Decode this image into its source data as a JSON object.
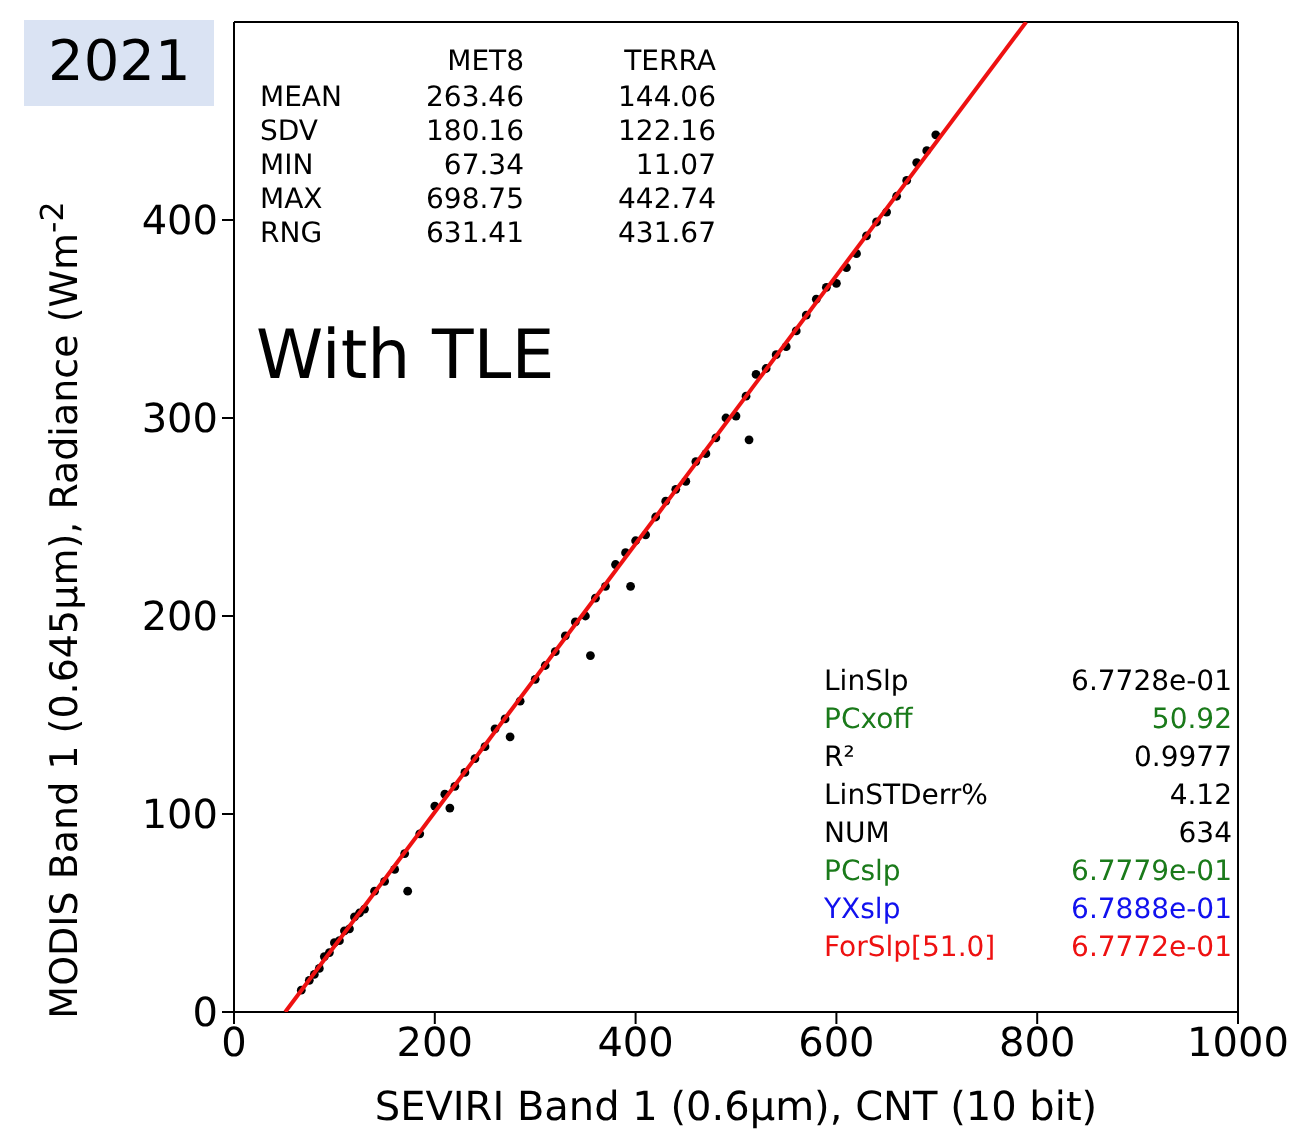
{
  "chart_data": {
    "type": "scatter",
    "xlabel": "SEVIRI Band 1 (0.6μm), CNT (10 bit)",
    "ylabel": "MODIS Band 1 (0.645μm), Radiance (Wm$^{-2}$",
    "xlim": [
      0,
      1000
    ],
    "xticks": [
      0,
      200,
      400,
      600,
      800,
      1000
    ],
    "ylim": [
      0,
      500
    ],
    "yticks": [
      0,
      100,
      200,
      300,
      400
    ],
    "grid": false,
    "marker": "circle",
    "series": [
      {
        "color": "#000000",
        "x": [
          67,
          75,
          80,
          85,
          90,
          95,
          100,
          105,
          110,
          115,
          120,
          125,
          130,
          140,
          150,
          160,
          170,
          173,
          185,
          200,
          210,
          215,
          220,
          230,
          240,
          250,
          260,
          270,
          275,
          285,
          300,
          310,
          320,
          330,
          340,
          350,
          355,
          360,
          370,
          380,
          390,
          395,
          400,
          410,
          420,
          430,
          440,
          450,
          460,
          470,
          480,
          490,
          500,
          510,
          513,
          520,
          530,
          540,
          550,
          560,
          570,
          580,
          590,
          600,
          610,
          620,
          630,
          640,
          650,
          660,
          670,
          680,
          690,
          699
        ],
        "values": [
          11,
          16,
          19,
          22,
          28,
          30,
          35,
          36,
          41,
          42,
          48,
          50,
          52,
          61,
          66,
          72,
          80,
          61,
          90,
          104,
          110,
          103,
          114,
          121,
          128,
          134,
          143,
          148,
          139,
          157,
          168,
          175,
          182,
          190,
          197,
          200,
          180,
          209,
          215,
          226,
          232,
          215,
          238,
          241,
          250,
          258,
          264,
          268,
          278,
          282,
          290,
          300,
          301,
          311,
          289,
          322,
          325,
          332,
          336,
          344,
          352,
          360,
          366,
          368,
          376,
          383,
          392,
          399,
          404,
          412,
          420,
          429,
          435,
          443
        ]
      },
      {
        "type": "line",
        "color": "#ee1111",
        "marker": "none",
        "x": [
          51,
          789
        ],
        "values": [
          0,
          500
        ]
      }
    ],
    "annotations": [
      "2021",
      "With TLE",
      "MET8",
      "TERRA",
      "MEAN",
      "SDV",
      "MIN",
      "MAX",
      "RNG",
      "263.46",
      "180.16",
      "67.34",
      "698.75",
      "631.41",
      "144.06",
      "122.16",
      "11.07",
      "442.74",
      "431.67",
      "LinSlp",
      "PCxoff",
      "R²",
      "LinSTDerr%",
      "NUM",
      "PCslp",
      "YXslp",
      "ForSlp[51.0]",
      "6.7728e-01",
      "50.92",
      "0.9977",
      "4.12",
      "634",
      "6.7779e-01",
      "6.7888e-01",
      "6.7772e-01"
    ]
  }
}
